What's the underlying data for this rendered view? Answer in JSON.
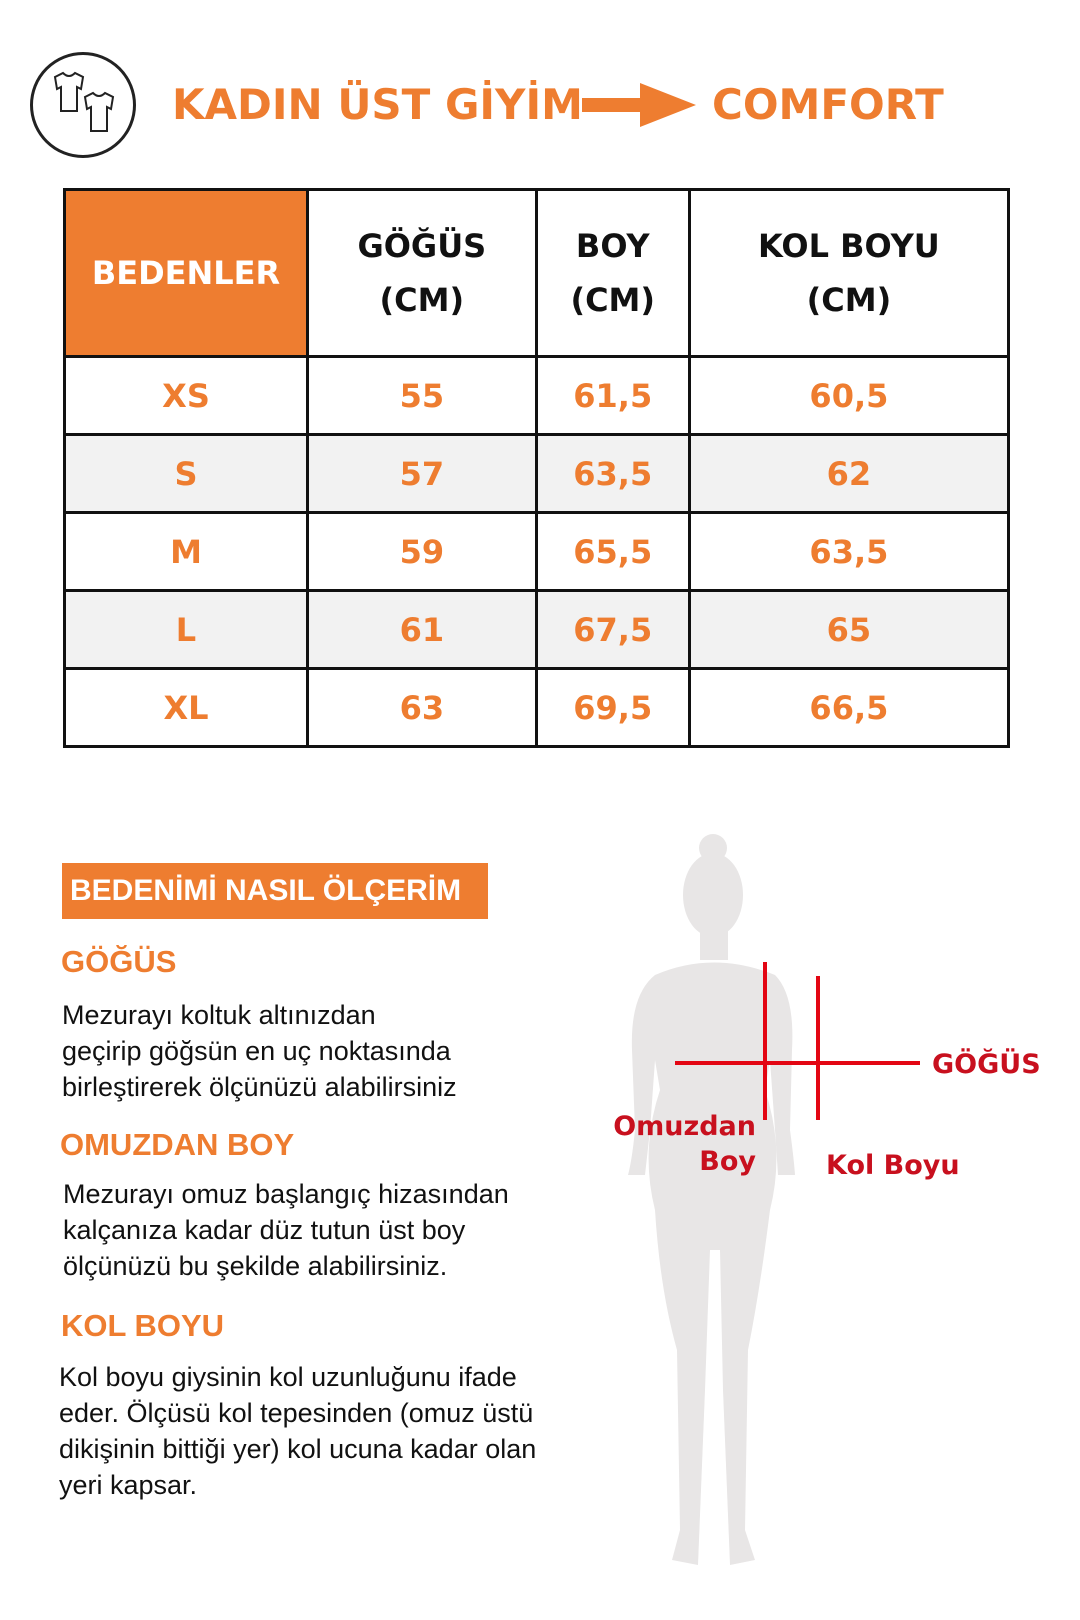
{
  "header": {
    "title": "KADIN ÜST GİYİM",
    "brand": "COMFORT",
    "icon": "t-shirts-icon",
    "arrow_icon": "arrow-right-icon"
  },
  "table": {
    "headers": [
      [
        "BEDENLER",
        ""
      ],
      [
        "GÖĞÜS",
        "(CM)"
      ],
      [
        "BOY",
        "(CM)"
      ],
      [
        "KOL BOYU",
        "(CM)"
      ]
    ],
    "rows": [
      [
        "XS",
        "55",
        "61,5",
        "60,5"
      ],
      [
        "S",
        "57",
        "63,5",
        "62"
      ],
      [
        "M",
        "59",
        "65,5",
        "63,5"
      ],
      [
        "L",
        "61",
        "67,5",
        "65"
      ],
      [
        "XL",
        "63",
        "69,5",
        "66,5"
      ]
    ]
  },
  "guide": {
    "title": "BEDENİMİ NASIL ÖLÇERİM",
    "sections": [
      {
        "heading": "GÖĞÜS",
        "lines": [
          "Mezurayı koltuk altınızdan",
          "geçirip göğsün en uç noktasında",
          "birleştirerek ölçünüzü alabilirsiniz"
        ]
      },
      {
        "heading": "OMUZDAN BOY",
        "lines": [
          "Mezurayı omuz başlangıç hizasından",
          "kalçanıza kadar düz tutun üst boy",
          "ölçünüzü bu şekilde alabilirsiniz."
        ]
      },
      {
        "heading": "KOL BOYU",
        "lines": [
          "Kol boyu giysinin kol uzunluğunu ifade",
          "eder. Ölçüsü kol tepesinden (omuz üstü",
          "dikişinin bittiği yer) kol ucuna kadar olan",
          "yeri kapsar."
        ]
      }
    ]
  },
  "figure": {
    "labels": {
      "chest": "GÖĞÜS",
      "shoulder_1": "Omuzdan",
      "shoulder_2": "Boy",
      "sleeve": "Kol Boyu"
    }
  },
  "colors": {
    "accent": "#ee7d30",
    "measure_line": "#e30613",
    "label": "#c8101e",
    "silhouette": "#e8e6e6"
  }
}
